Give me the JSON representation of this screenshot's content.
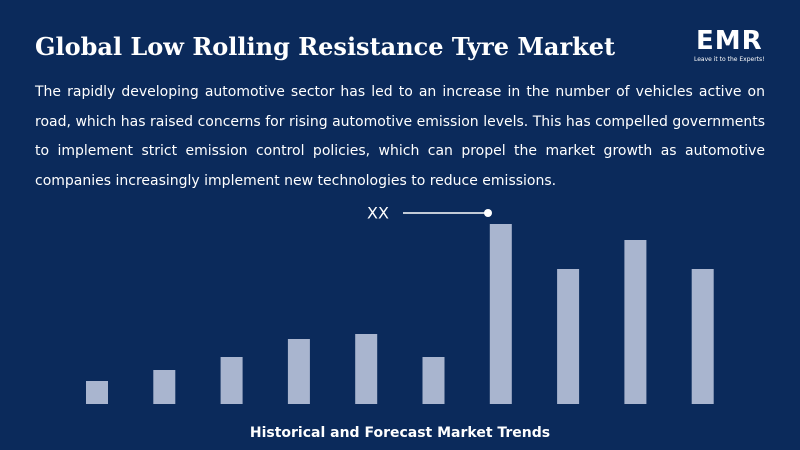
{
  "chart_data": {
    "type": "bar",
    "title": "Global Low Rolling Resistance Tyre Market",
    "subtitle": "The rapidly developing automotive sector has led to an increase in the number of vehicles active on road, which has raised concerns for rising automotive emission levels. This has compelled governments to implement strict emission control policies, which can propel the market growth as automotive companies increasingly implement new technologies to reduce emissions.",
    "annotation": "XX",
    "x_label": "Historical and Forecast Market Trends",
    "logo": "EMR",
    "tagline": "Leave it to the Experts!",
    "values": [
      23,
      34,
      47,
      65,
      70,
      47,
      180,
      135,
      164,
      135
    ],
    "color": "#a9b5cf"
  }
}
